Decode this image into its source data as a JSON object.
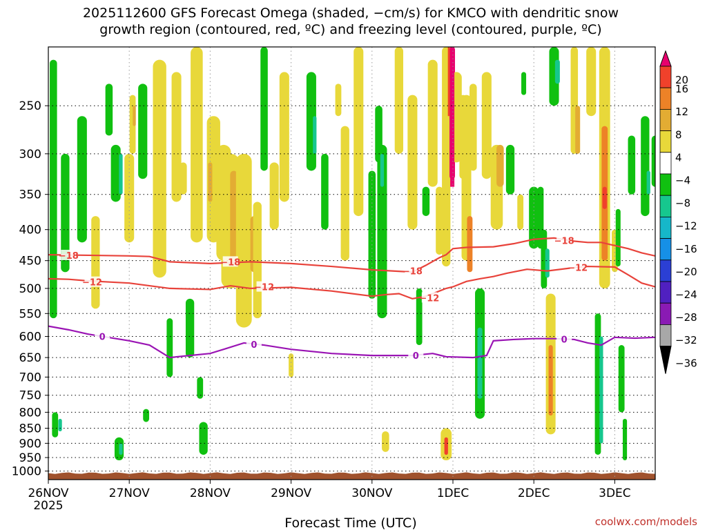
{
  "title": {
    "line1": "2025112600 GFS Forecast Omega (shaded, −cm/s) for KMCO with dendritic snow",
    "line2": "growth region (contoured, red, ºC) and freezing level (contoured, purple, ºC)"
  },
  "credit": "coolwx.com/models",
  "chart_data": {
    "type": "heatmap",
    "xlabel": "Forecast Time (UTC)",
    "x_ticks": [
      {
        "label": "26NOV",
        "sub": "2025",
        "t": 0
      },
      {
        "label": "27NOV",
        "t": 24
      },
      {
        "label": "28NOV",
        "t": 48
      },
      {
        "label": "29NOV",
        "t": 72
      },
      {
        "label": "30NOV",
        "t": 96
      },
      {
        "label": "1DEC",
        "t": 120
      },
      {
        "label": "2DEC",
        "t": 144
      },
      {
        "label": "3DEC",
        "t": 168
      }
    ],
    "xlim": [
      0,
      180
    ],
    "y_ticks": [
      250,
      300,
      350,
      400,
      450,
      500,
      550,
      600,
      650,
      700,
      750,
      800,
      850,
      900,
      950,
      1000
    ],
    "ylim": [
      200,
      1000
    ],
    "yscale": "log-pressure",
    "grid": true,
    "colorbar": {
      "position": "right",
      "tick_labels": [
        "20",
        "16",
        "12",
        "8",
        "4",
        "−4",
        "−8",
        "−12",
        "−16",
        "−20",
        "−24",
        "−28",
        "−32",
        "−36"
      ],
      "colors": [
        "#e8006e",
        "#f0412b",
        "#ed8227",
        "#e3ac33",
        "#e8d83a",
        "#ffffff",
        "#10c010",
        "#16c78e",
        "#16b7c9",
        "#1690e6",
        "#2b3fd4",
        "#5020c0",
        "#8a1ab4",
        "#a8a8a8",
        "#000000"
      ]
    },
    "contours": [
      {
        "name": "−18",
        "color": "#e8423a",
        "kind": "dendritic",
        "points": [
          [
            0,
            440
          ],
          [
            12,
            441
          ],
          [
            24,
            442
          ],
          [
            30,
            443
          ],
          [
            36,
            452
          ],
          [
            48,
            455
          ],
          [
            60,
            452
          ],
          [
            72,
            455
          ],
          [
            84,
            460
          ],
          [
            96,
            466
          ],
          [
            102,
            468
          ],
          [
            108,
            470
          ],
          [
            112,
            458
          ],
          [
            116,
            445
          ],
          [
            118,
            440
          ],
          [
            120,
            430
          ],
          [
            124,
            428
          ],
          [
            132,
            427
          ],
          [
            138,
            422
          ],
          [
            144,
            415
          ],
          [
            150,
            413
          ],
          [
            156,
            418
          ],
          [
            160,
            420
          ],
          [
            164,
            420
          ],
          [
            168,
            425
          ],
          [
            172,
            430
          ],
          [
            176,
            437
          ],
          [
            180,
            442
          ]
        ],
        "labels": [
          [
            6,
            441
          ],
          [
            54,
            452
          ],
          [
            108,
            468
          ],
          [
            153,
            417
          ]
        ]
      },
      {
        "name": "−12",
        "color": "#e8423a",
        "kind": "dendritic",
        "points": [
          [
            0,
            482
          ],
          [
            6,
            483
          ],
          [
            12,
            486
          ],
          [
            24,
            490
          ],
          [
            36,
            500
          ],
          [
            48,
            502
          ],
          [
            54,
            495
          ],
          [
            60,
            500
          ],
          [
            72,
            498
          ],
          [
            84,
            505
          ],
          [
            96,
            515
          ],
          [
            100,
            512
          ],
          [
            104,
            510
          ],
          [
            108,
            520
          ],
          [
            112,
            515
          ],
          [
            116,
            505
          ],
          [
            118,
            500
          ],
          [
            120,
            497
          ],
          [
            124,
            487
          ],
          [
            128,
            482
          ],
          [
            132,
            478
          ],
          [
            136,
            472
          ],
          [
            142,
            465
          ],
          [
            148,
            468
          ],
          [
            156,
            462
          ],
          [
            160,
            460
          ],
          [
            168,
            461
          ],
          [
            172,
            475
          ],
          [
            176,
            490
          ],
          [
            180,
            497
          ]
        ],
        "labels": [
          [
            13,
            488
          ],
          [
            64,
            497
          ],
          [
            113,
            518
          ],
          [
            157,
            462
          ]
        ]
      },
      {
        "name": "0",
        "color": "#9a14b4",
        "kind": "freezing",
        "points": [
          [
            0,
            577
          ],
          [
            6,
            585
          ],
          [
            12,
            595
          ],
          [
            24,
            610
          ],
          [
            30,
            620
          ],
          [
            36,
            650
          ],
          [
            42,
            645
          ],
          [
            48,
            640
          ],
          [
            52,
            630
          ],
          [
            58,
            615
          ],
          [
            64,
            620
          ],
          [
            72,
            630
          ],
          [
            84,
            640
          ],
          [
            96,
            645
          ],
          [
            108,
            645
          ],
          [
            114,
            640
          ],
          [
            118,
            648
          ],
          [
            126,
            650
          ],
          [
            130,
            645
          ],
          [
            132,
            610
          ],
          [
            138,
            607
          ],
          [
            144,
            605
          ],
          [
            150,
            605
          ],
          [
            156,
            607
          ],
          [
            160,
            615
          ],
          [
            164,
            620
          ],
          [
            168,
            602
          ],
          [
            174,
            604
          ],
          [
            180,
            602
          ]
        ],
        "labels": [
          [
            16,
            600
          ],
          [
            61,
            618
          ],
          [
            109,
            645
          ],
          [
            153,
            606
          ]
        ]
      }
    ],
    "terrain": {
      "color": "#a0522d",
      "bottom_pressure": 1000
    }
  }
}
